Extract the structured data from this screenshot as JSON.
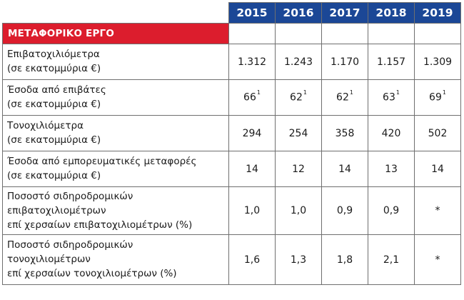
{
  "table": {
    "years": [
      "2015",
      "2016",
      "2017",
      "2018",
      "2019"
    ],
    "section_title": "ΜΕΤΑΦΟΡΙΚΟ ΕΡΓΟ",
    "rows": [
      {
        "label_lines": [
          "Επιβατοχιλιόμετρα",
          "(σε εκατομμύρια €)"
        ],
        "values": [
          {
            "v": "1.312"
          },
          {
            "v": "1.243"
          },
          {
            "v": "1.170"
          },
          {
            "v": "1.157"
          },
          {
            "v": "1.309"
          }
        ]
      },
      {
        "label_lines": [
          "Έσοδα από επιβάτες",
          "(σε εκατομμύρια €)"
        ],
        "values": [
          {
            "v": "66",
            "fn": "1"
          },
          {
            "v": "62",
            "fn": "1"
          },
          {
            "v": "62",
            "fn": "1"
          },
          {
            "v": "63",
            "fn": "1"
          },
          {
            "v": "69",
            "fn": "1"
          }
        ]
      },
      {
        "label_lines": [
          "Τονοχιλιόμετρα",
          "(σε εκατομμύρια €)"
        ],
        "values": [
          {
            "v": "294"
          },
          {
            "v": "254"
          },
          {
            "v": "358"
          },
          {
            "v": "420"
          },
          {
            "v": "502"
          }
        ]
      },
      {
        "label_lines": [
          "Έσοδα από εμπορευματικές μεταφορές",
          "(σε εκατομμύρια €)"
        ],
        "values": [
          {
            "v": "14"
          },
          {
            "v": "12"
          },
          {
            "v": "14"
          },
          {
            "v": "13"
          },
          {
            "v": "14"
          }
        ]
      },
      {
        "label_lines": [
          "Ποσοστό σιδηροδρομικών",
          "επιβατοχιλιομέτρων",
          "επί χερσαίων επιβατοχιλιομέτρων (%)"
        ],
        "values": [
          {
            "v": "1,0"
          },
          {
            "v": "1,0"
          },
          {
            "v": "0,9"
          },
          {
            "v": "0,9"
          },
          {
            "v": "*"
          }
        ]
      },
      {
        "label_lines": [
          "Ποσοστό σιδηροδρομικών",
          "τονοχιλιομέτρων",
          "επί χερσαίων τονοχιλιομέτρων (%)"
        ],
        "values": [
          {
            "v": "1,6"
          },
          {
            "v": "1,3"
          },
          {
            "v": "1,8"
          },
          {
            "v": "2,1"
          },
          {
            "v": "*"
          }
        ]
      }
    ]
  },
  "colors": {
    "header_bg": "#1b4796",
    "section_bg": "#dc1d2d",
    "border": "#6f6f6f",
    "text": "#1a1a1a"
  }
}
